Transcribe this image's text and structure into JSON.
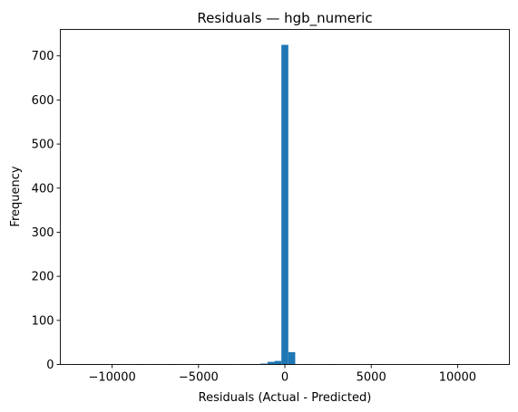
{
  "chart_data": {
    "type": "bar",
    "title": "Residuals — hgb_numeric",
    "xlabel": "Residuals (Actual - Predicted)",
    "ylabel": "Frequency",
    "xlim": [
      -13000,
      13000
    ],
    "ylim": [
      0,
      760
    ],
    "grid": false,
    "color": "#1f77b4",
    "bin_width": 400,
    "x_ticks": [
      -10000,
      -5000,
      0,
      5000,
      10000
    ],
    "x_tick_labels": [
      "−10000",
      "−5000",
      "0",
      "5000",
      "10000"
    ],
    "y_ticks": [
      0,
      100,
      200,
      300,
      400,
      500,
      600,
      700
    ],
    "y_tick_labels": [
      "0",
      "100",
      "200",
      "300",
      "400",
      "500",
      "600",
      "700"
    ],
    "bins": [
      {
        "start": -12200,
        "count": 1
      },
      {
        "start": -11800,
        "count": 1
      },
      {
        "start": -11400,
        "count": 1
      },
      {
        "start": -11000,
        "count": 1
      },
      {
        "start": -10600,
        "count": 1
      },
      {
        "start": -9800,
        "count": 1
      },
      {
        "start": -8600,
        "count": 1
      },
      {
        "start": -7800,
        "count": 1
      },
      {
        "start": -7000,
        "count": 1
      },
      {
        "start": -6600,
        "count": 1
      },
      {
        "start": -4600,
        "count": 1
      },
      {
        "start": -4200,
        "count": 1
      },
      {
        "start": -3800,
        "count": 1
      },
      {
        "start": -3400,
        "count": 1
      },
      {
        "start": -2600,
        "count": 1
      },
      {
        "start": -2200,
        "count": 1
      },
      {
        "start": -1800,
        "count": 1
      },
      {
        "start": -1400,
        "count": 2
      },
      {
        "start": -1000,
        "count": 6
      },
      {
        "start": -600,
        "count": 8
      },
      {
        "start": -200,
        "count": 725
      },
      {
        "start": 200,
        "count": 28
      },
      {
        "start": 1000,
        "count": 1
      },
      {
        "start": 2200,
        "count": 1
      },
      {
        "start": 2600,
        "count": 1
      },
      {
        "start": 3800,
        "count": 1
      },
      {
        "start": 5400,
        "count": 1
      },
      {
        "start": 7400,
        "count": 1
      },
      {
        "start": 9400,
        "count": 1
      },
      {
        "start": 10600,
        "count": 1
      },
      {
        "start": 11400,
        "count": 1
      }
    ]
  }
}
